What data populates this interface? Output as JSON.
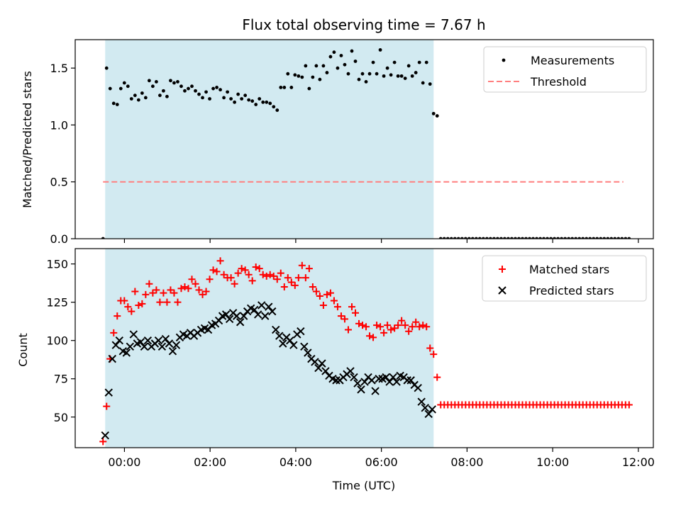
{
  "chart_data": {
    "type": "scatter",
    "title": "Flux total observing time = 7.67 h",
    "xlabel": "Time (UTC)",
    "x_unit": "hours from 00:00 UTC",
    "xlim": [
      -1.15,
      12.35
    ],
    "x_ticks": [
      0,
      2,
      4,
      6,
      8,
      10,
      12
    ],
    "x_tick_labels": [
      "00:00",
      "02:00",
      "04:00",
      "06:00",
      "08:00",
      "10:00",
      "12:00"
    ],
    "shaded_span": {
      "start": -0.45,
      "end": 7.22,
      "color": "#add8e6"
    },
    "colors": {
      "measurement": "#000000",
      "threshold": "#ff7f7f",
      "matched": "#ff0000",
      "predicted": "#000000",
      "shade": "#add8e6"
    },
    "panels": [
      {
        "id": "ratio",
        "ylabel": "Matched/Predicted stars",
        "ylim": [
          0,
          1.75
        ],
        "y_ticks": [
          0.0,
          0.5,
          1.0,
          1.5
        ],
        "y_tick_labels": [
          "0.0",
          "0.5",
          "1.0",
          "1.5"
        ],
        "legend": {
          "location": "upper right",
          "entries": [
            "Measurements",
            "Threshold"
          ]
        },
        "threshold": {
          "name": "Threshold",
          "value": 0.5,
          "x_start": -0.5,
          "x_end": 11.65
        },
        "series": [
          {
            "name": "Measurements",
            "marker": "dot",
            "x_start": -0.5,
            "x_step": 0.083,
            "values": [
              0.0,
              1.5,
              1.32,
              1.19,
              1.18,
              1.32,
              1.37,
              1.34,
              1.23,
              1.26,
              1.22,
              1.28,
              1.24,
              1.39,
              1.34,
              1.38,
              1.26,
              1.3,
              1.25,
              1.39,
              1.37,
              1.38,
              1.34,
              1.3,
              1.32,
              1.34,
              1.3,
              1.27,
              1.24,
              1.29,
              1.23,
              1.32,
              1.33,
              1.31,
              1.24,
              1.29,
              1.23,
              1.2,
              1.27,
              1.23,
              1.26,
              1.22,
              1.21,
              1.18,
              1.23,
              1.2,
              1.2,
              1.19,
              1.16,
              1.13,
              1.33,
              1.33,
              1.45,
              1.33,
              1.44,
              1.43,
              1.42,
              1.52,
              1.32,
              1.42,
              1.52,
              1.4,
              1.52,
              1.46,
              1.6,
              1.64,
              1.5,
              1.61,
              1.53,
              1.45,
              1.65,
              1.56,
              1.4,
              1.45,
              1.38,
              1.45,
              1.55,
              1.45,
              1.66,
              1.43,
              1.5,
              1.44,
              1.55,
              1.43,
              1.43,
              1.41,
              1.52,
              1.43,
              1.46,
              1.55,
              1.37,
              1.55,
              1.36,
              1.1,
              1.08,
              0.0,
              0.0,
              0.0,
              0.0,
              0.0,
              0.0,
              0.0,
              0.0,
              0.0,
              0.0,
              0.0,
              0.0,
              0.0,
              0.0,
              0.0,
              0.0,
              0.0,
              0.0,
              0.0,
              0.0,
              0.0,
              0.0,
              0.0,
              0.0,
              0.0,
              0.0,
              0.0,
              0.0,
              0.0,
              0.0,
              0.0,
              0.0,
              0.0,
              0.0,
              0.0,
              0.0,
              0.0,
              0.0,
              0.0,
              0.0,
              0.0,
              0.0,
              0.0,
              0.0,
              0.0,
              0.0,
              0.0,
              0.0,
              0.0,
              0.0,
              0.0,
              0.0,
              0.0,
              0.0
            ]
          }
        ]
      },
      {
        "id": "counts",
        "ylabel": "Count",
        "ylim": [
          30,
          160
        ],
        "y_ticks": [
          50,
          75,
          100,
          125,
          150
        ],
        "y_tick_labels": [
          "50",
          "75",
          "100",
          "125",
          "150"
        ],
        "legend": {
          "location": "upper right",
          "entries": [
            "Matched stars",
            "Predicted stars"
          ]
        },
        "series": [
          {
            "name": "Matched stars",
            "marker": "plus",
            "x_start": -0.5,
            "x_step": 0.083,
            "values": [
              34,
              57,
              88,
              105,
              116,
              126,
              126,
              122,
              119,
              132,
              123,
              124,
              130,
              137,
              131,
              133,
              125,
              131,
              125,
              133,
              131,
              125,
              134,
              135,
              134,
              140,
              137,
              133,
              130,
              132,
              140,
              146,
              145,
              152,
              143,
              141,
              141,
              137,
              144,
              147,
              146,
              143,
              139,
              148,
              147,
              143,
              142,
              143,
              142,
              140,
              144,
              135,
              141,
              138,
              136,
              141,
              149,
              141,
              147,
              135,
              132,
              129,
              123,
              130,
              131,
              126,
              122,
              116,
              114,
              107,
              122,
              118,
              111,
              110,
              109,
              103,
              102,
              110,
              109,
              105,
              110,
              107,
              108,
              110,
              113,
              110,
              106,
              109,
              112,
              109,
              110,
              109,
              95,
              91,
              76,
              58,
              58,
              58,
              58,
              58,
              58,
              58,
              58,
              58,
              58,
              58,
              58,
              58,
              58,
              58,
              58,
              58,
              58,
              58,
              58,
              58,
              58,
              58,
              58,
              58,
              58,
              58,
              58,
              58,
              58,
              58,
              58,
              58,
              58,
              58,
              58,
              58,
              58,
              58,
              58,
              58,
              58,
              58,
              58,
              58,
              58,
              58,
              58,
              58,
              58,
              58,
              58,
              58,
              58
            ]
          },
          {
            "name": "Predicted stars",
            "marker": "x",
            "x_start": -0.45,
            "x_step": 0.083,
            "values": [
              38,
              66,
              88,
              97,
              100,
              93,
              92,
              96,
              104,
              98,
              99,
              96,
              100,
              96,
              98,
              100,
              96,
              101,
              98,
              93,
              97,
              102,
              104,
              103,
              105,
              103,
              105,
              107,
              108,
              107,
              110,
              111,
              113,
              116,
              117,
              114,
              118,
              116,
              112,
              116,
              119,
              121,
              120,
              117,
              123,
              116,
              122,
              119,
              107,
              103,
              98,
              102,
              100,
              97,
              104,
              106,
              96,
              92,
              88,
              86,
              82,
              85,
              80,
              77,
              75,
              74,
              74,
              76,
              78,
              80,
              76,
              72,
              68,
              73,
              76,
              74,
              67,
              75,
              75,
              76,
              73,
              76,
              73,
              77,
              76,
              74,
              74,
              71,
              69,
              60,
              56,
              52,
              55
            ]
          }
        ]
      }
    ]
  }
}
